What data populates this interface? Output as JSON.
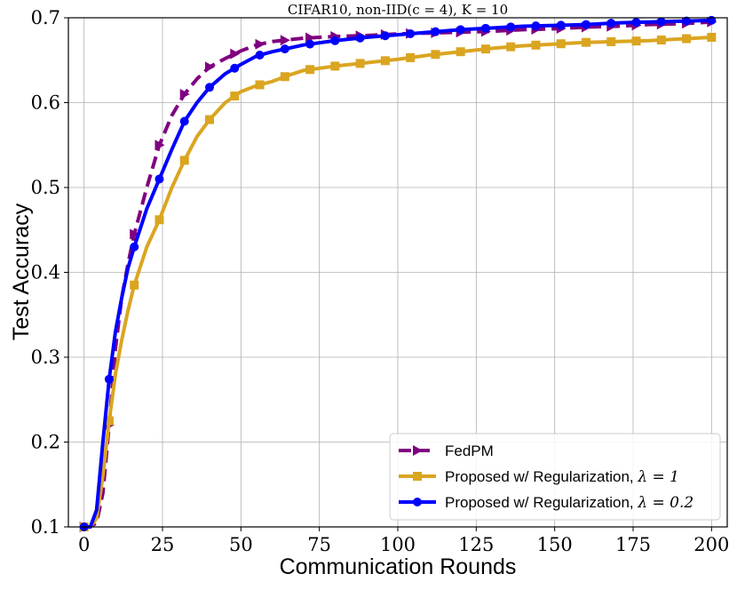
{
  "chart_data": {
    "type": "line",
    "title": "CIFAR10, non-IID(c = 4), K = 10",
    "xlabel": "Communication Rounds",
    "ylabel": "Test Accuracy",
    "xlim": [
      -5,
      205
    ],
    "ylim": [
      0.1,
      0.7
    ],
    "xticks": [
      0,
      25,
      50,
      75,
      100,
      125,
      150,
      175,
      200
    ],
    "xtick_labels": [
      "0",
      "25",
      "50",
      "75",
      "100",
      "125",
      "150",
      "175",
      "200"
    ],
    "yticks": [
      0.1,
      0.2,
      0.3,
      0.4,
      0.5,
      0.6,
      0.7
    ],
    "ytick_labels": [
      "0.1",
      "0.2",
      "0.3",
      "0.4",
      "0.5",
      "0.6",
      "0.7"
    ],
    "grid": true,
    "legend_position": "bottom-right",
    "series": [
      {
        "name": "FedPM",
        "legend_label": "FedPM",
        "legend_math": "",
        "color": "#800080",
        "style": "dashed",
        "marker": "triangle-right",
        "x": [
          0,
          2,
          4,
          6,
          8,
          10,
          12,
          14,
          16,
          20,
          24,
          28,
          32,
          36,
          40,
          45,
          50,
          55,
          60,
          65,
          70,
          80,
          90,
          100,
          110,
          120,
          130,
          140,
          150,
          160,
          170,
          180,
          190,
          200
        ],
        "values": [
          0.1,
          0.1,
          0.105,
          0.14,
          0.22,
          0.31,
          0.37,
          0.41,
          0.445,
          0.5,
          0.55,
          0.585,
          0.61,
          0.628,
          0.642,
          0.652,
          0.661,
          0.668,
          0.672,
          0.674,
          0.676,
          0.678,
          0.679,
          0.681,
          0.682,
          0.683,
          0.684,
          0.686,
          0.687,
          0.689,
          0.69,
          0.692,
          0.693,
          0.695
        ],
        "marker_x": [
          0,
          8,
          16,
          24,
          32,
          40,
          48,
          56,
          64,
          72,
          80,
          88,
          96,
          104,
          112,
          120,
          128,
          136,
          144,
          152,
          160,
          168,
          176,
          184,
          192,
          200
        ]
      },
      {
        "name": "Proposed w/ Regularization, λ = 1",
        "legend_label": "Proposed w/ Regularization, ",
        "legend_math": "λ = 1",
        "color": "#DAA520",
        "style": "solid",
        "marker": "square",
        "x": [
          0,
          2,
          4,
          6,
          8,
          10,
          12,
          14,
          16,
          20,
          24,
          28,
          32,
          36,
          40,
          45,
          50,
          55,
          60,
          65,
          70,
          80,
          90,
          100,
          110,
          120,
          130,
          140,
          150,
          160,
          170,
          180,
          190,
          200
        ],
        "values": [
          0.1,
          0.1,
          0.11,
          0.16,
          0.225,
          0.28,
          0.32,
          0.355,
          0.385,
          0.43,
          0.462,
          0.5,
          0.532,
          0.56,
          0.58,
          0.6,
          0.613,
          0.62,
          0.625,
          0.632,
          0.638,
          0.643,
          0.647,
          0.651,
          0.656,
          0.66,
          0.664,
          0.667,
          0.669,
          0.671,
          0.672,
          0.673,
          0.675,
          0.677
        ],
        "marker_x": [
          0,
          8,
          16,
          24,
          32,
          40,
          48,
          56,
          64,
          72,
          80,
          88,
          96,
          104,
          112,
          120,
          128,
          136,
          144,
          152,
          160,
          168,
          176,
          184,
          192,
          200
        ]
      },
      {
        "name": "Proposed w/ Regularization, λ = 0.2",
        "legend_label": "Proposed w/ Regularization, ",
        "legend_math": "λ = 0.2",
        "color": "#0000FF",
        "style": "solid",
        "marker": "circle",
        "x": [
          0,
          2,
          4,
          6,
          8,
          10,
          12,
          14,
          16,
          20,
          24,
          28,
          32,
          36,
          40,
          45,
          50,
          55,
          60,
          65,
          70,
          80,
          90,
          100,
          110,
          120,
          130,
          140,
          150,
          160,
          170,
          180,
          190,
          200
        ],
        "values": [
          0.1,
          0.1,
          0.12,
          0.2,
          0.274,
          0.33,
          0.37,
          0.405,
          0.43,
          0.475,
          0.51,
          0.545,
          0.578,
          0.6,
          0.618,
          0.634,
          0.645,
          0.655,
          0.66,
          0.664,
          0.668,
          0.673,
          0.677,
          0.68,
          0.683,
          0.686,
          0.688,
          0.69,
          0.691,
          0.692,
          0.694,
          0.695,
          0.696,
          0.697
        ],
        "marker_x": [
          0,
          8,
          16,
          24,
          32,
          40,
          48,
          56,
          64,
          72,
          80,
          88,
          96,
          104,
          112,
          120,
          128,
          136,
          144,
          152,
          160,
          168,
          176,
          184,
          192,
          200
        ]
      }
    ]
  }
}
